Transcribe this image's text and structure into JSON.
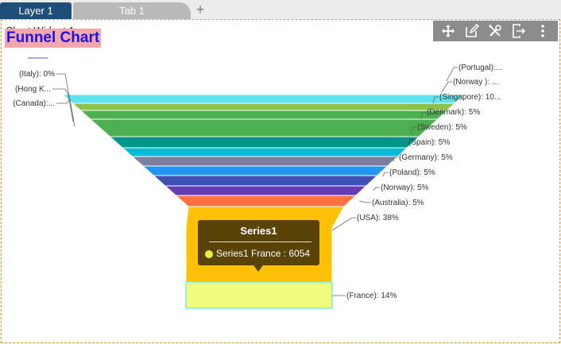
{
  "tabs": {
    "layer": "Layer 1",
    "tab": "Tab 1",
    "add": "+"
  },
  "widget": {
    "title": "Chart Widget 1"
  },
  "toolbar": [
    "move-icon",
    "edit-icon",
    "settings-icon",
    "export-icon",
    "more-icon"
  ],
  "chart_data": {
    "type": "funnel",
    "title": "Funnel Chart",
    "series_name": "Series1",
    "items": [
      {
        "label": "(Italy): 0%",
        "color": "#7aa8ff"
      },
      {
        "label": "(Hong K...",
        "color": "#a6e6ff"
      },
      {
        "label": "(Canada):...",
        "color": "#9fe0ff"
      },
      {
        "label": "(Portugal):...",
        "color": "#4dd9f0"
      },
      {
        "label": "(Norway ): ...",
        "color": "#68e2f2"
      },
      {
        "label": "(Singapore): 10...",
        "color": "#8bc34a"
      },
      {
        "label": "(Denmark): 5%",
        "color": "#4caf50"
      },
      {
        "label": "(Sweden): 5%",
        "color": "#4caf50"
      },
      {
        "label": "(Spain): 5%",
        "color": "#009688"
      },
      {
        "label": "(Germany): 5%",
        "color": "#00bcd4"
      },
      {
        "label": "(Poland): 5%",
        "color": "#7e7e9e"
      },
      {
        "label": "(Norway): 5%",
        "color": "#2196f3"
      },
      {
        "label": "(Australia): 5%",
        "color": "#3f51b5"
      },
      {
        "label": "(USA): 38%",
        "color": "#673ab7"
      },
      {
        "label": "(France): 14%",
        "color": "#ff7043"
      }
    ],
    "tooltip": {
      "title": "Series1",
      "text": "Series1 France : 6054",
      "dot_color": "#e7f13a"
    }
  }
}
